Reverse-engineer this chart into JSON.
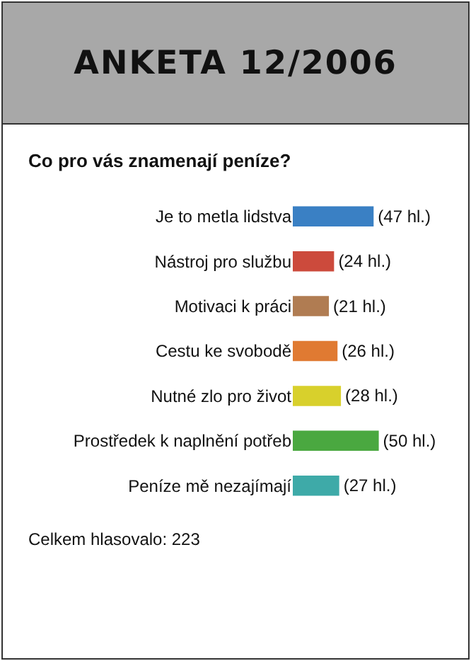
{
  "chart_data": {
    "type": "bar",
    "orientation": "horizontal",
    "title": "ANKETA 12/2006",
    "subtitle": "Co pro vás znamenají peníze?",
    "categories": [
      "Je to metla lidstva",
      "Nástroj pro službu",
      "Motivaci k práci",
      "Cestu ke svobodě",
      "Nutné zlo pro život",
      "Prostředek k naplnění potřeb",
      "Peníze mě nezajímají"
    ],
    "values": [
      47,
      24,
      21,
      26,
      28,
      50,
      27
    ],
    "value_labels": [
      "(47 hl.)",
      "(24 hl.)",
      "(21 hl.)",
      "(26 hl.)",
      "(28 hl.)",
      "(50 hl.)",
      "(27 hl.)"
    ],
    "colors": [
      "#3a80c4",
      "#cc4a3c",
      "#b07c52",
      "#e07a32",
      "#d8d02c",
      "#4aa840",
      "#3eaaa8"
    ],
    "tick_labels": "y",
    "annotations": [
      "Celkem hlasovalo: 223"
    ]
  }
}
